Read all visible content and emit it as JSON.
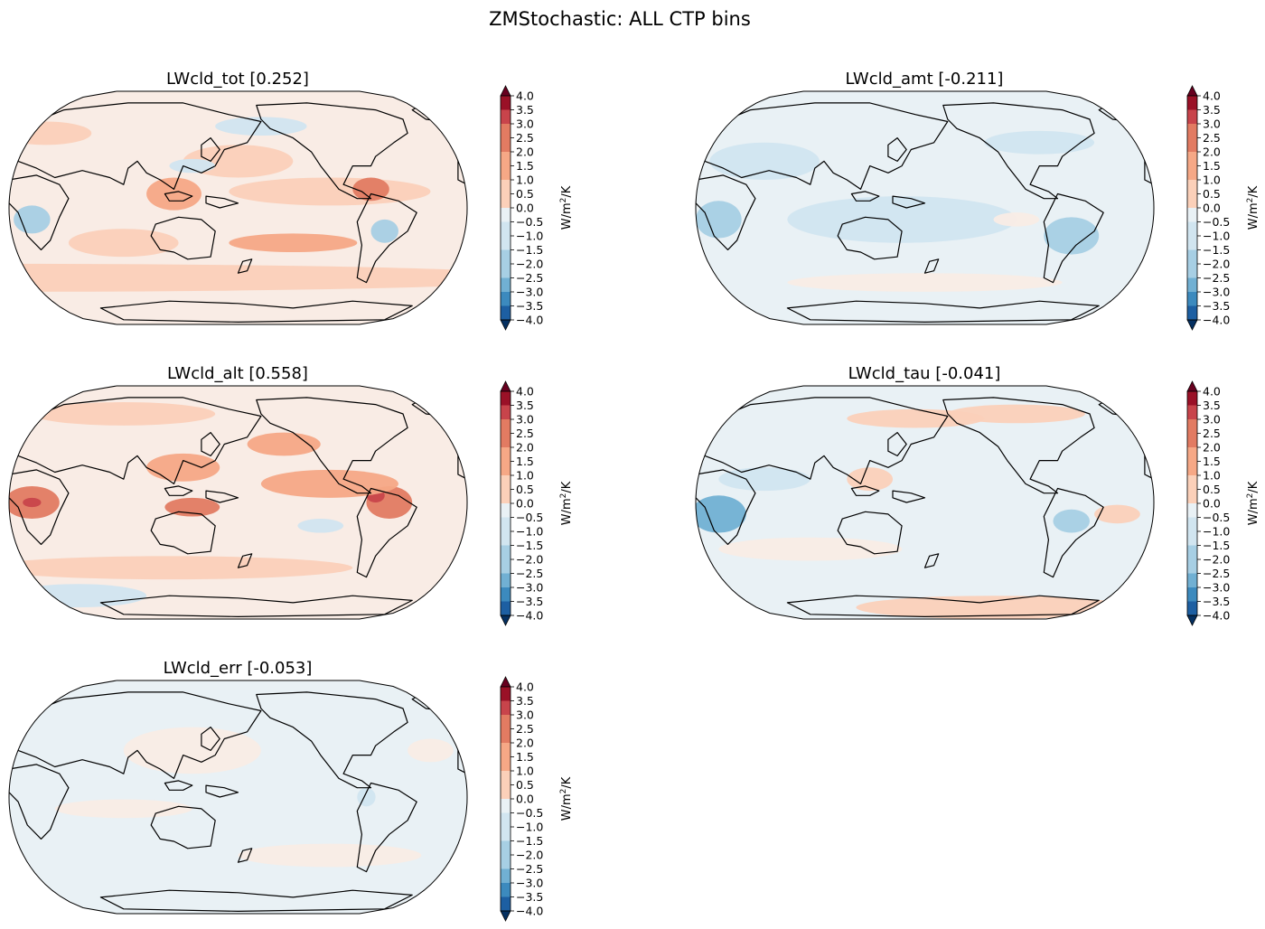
{
  "figure": {
    "title": "ZMStochastic: ALL CTP bins"
  },
  "colors": {
    "levels": [
      "#053061",
      "#1d5fa2",
      "#3c8abe",
      "#71b0d3",
      "#a7cfe4",
      "#d1e5f0",
      "#e9f1f5",
      "#f9ece5",
      "#fbd0b9",
      "#f6a886",
      "#e27b62",
      "#c8444b",
      "#9a1127",
      "#67001f"
    ],
    "coast": "#000000"
  },
  "chart_data": [
    {
      "type": "contour-map",
      "panel": "LWcld_tot",
      "title": "LWcld_tot [0.252]",
      "global_mean": 0.252,
      "base_level": 7,
      "projection": "Robinson (central longitude 180)",
      "colorbar": {
        "label": "W/m²/K",
        "label_main": "W/m",
        "label_sup": "2",
        "label_tail": "/K",
        "ticks": [
          "4.0",
          "3.5",
          "3.0",
          "2.5",
          "2.0",
          "1.5",
          "1.0",
          "0.5",
          "0.0",
          "−0.5",
          "−1.0",
          "−1.5",
          "−2.0",
          "−2.5",
          "−3.0",
          "−3.5",
          "−4.0"
        ],
        "range": [
          -4.0,
          4.0
        ],
        "extend": "both"
      }
    },
    {
      "type": "contour-map",
      "panel": "LWcld_amt",
      "title": "LWcld_amt [-0.211]",
      "global_mean": -0.211,
      "base_level": 6,
      "projection": "Robinson (central longitude 180)",
      "colorbar": {
        "label": "W/m²/K",
        "label_main": "W/m",
        "label_sup": "2",
        "label_tail": "/K",
        "ticks": [
          "4.0",
          "3.5",
          "3.0",
          "2.5",
          "2.0",
          "1.5",
          "1.0",
          "0.5",
          "0.0",
          "−0.5",
          "−1.0",
          "−1.5",
          "−2.0",
          "−2.5",
          "−3.0",
          "−3.5",
          "−4.0"
        ],
        "range": [
          -4.0,
          4.0
        ],
        "extend": "both"
      }
    },
    {
      "type": "contour-map",
      "panel": "LWcld_alt",
      "title": "LWcld_alt [0.558]",
      "global_mean": 0.558,
      "base_level": 7,
      "projection": "Robinson (central longitude 180)",
      "colorbar": {
        "label": "W/m²/K",
        "label_main": "W/m",
        "label_sup": "2",
        "label_tail": "/K",
        "ticks": [
          "4.0",
          "3.5",
          "3.0",
          "2.5",
          "2.0",
          "1.5",
          "1.0",
          "0.5",
          "0.0",
          "−0.5",
          "−1.0",
          "−1.5",
          "−2.0",
          "−2.5",
          "−3.0",
          "−3.5",
          "−4.0"
        ],
        "range": [
          -4.0,
          4.0
        ],
        "extend": "both"
      }
    },
    {
      "type": "contour-map",
      "panel": "LWcld_tau",
      "title": "LWcld_tau [-0.041]",
      "global_mean": -0.041,
      "base_level": 6,
      "projection": "Robinson (central longitude 180)",
      "colorbar": {
        "label": "W/m²/K",
        "label_main": "W/m",
        "label_sup": "2",
        "label_tail": "/K",
        "ticks": [
          "4.0",
          "3.5",
          "3.0",
          "2.5",
          "2.0",
          "1.5",
          "1.0",
          "0.5",
          "0.0",
          "−0.5",
          "−1.0",
          "−1.5",
          "−2.0",
          "−2.5",
          "−3.0",
          "−3.5",
          "−4.0"
        ],
        "range": [
          -4.0,
          4.0
        ],
        "extend": "both"
      }
    },
    {
      "type": "contour-map",
      "panel": "LWcld_err",
      "title": "LWcld_err [-0.053]",
      "global_mean": -0.053,
      "base_level": 6,
      "projection": "Robinson (central longitude 180)",
      "colorbar": {
        "label": "W/m²/K",
        "label_main": "W/m",
        "label_sup": "2",
        "label_tail": "/K",
        "ticks": [
          "4.0",
          "3.5",
          "3.0",
          "2.5",
          "2.0",
          "1.5",
          "1.0",
          "0.5",
          "0.0",
          "−0.5",
          "−1.0",
          "−1.5",
          "−2.0",
          "−2.5",
          "−3.0",
          "−3.5",
          "−4.0"
        ],
        "range": [
          -4.0,
          4.0
        ],
        "extend": "both"
      }
    }
  ]
}
